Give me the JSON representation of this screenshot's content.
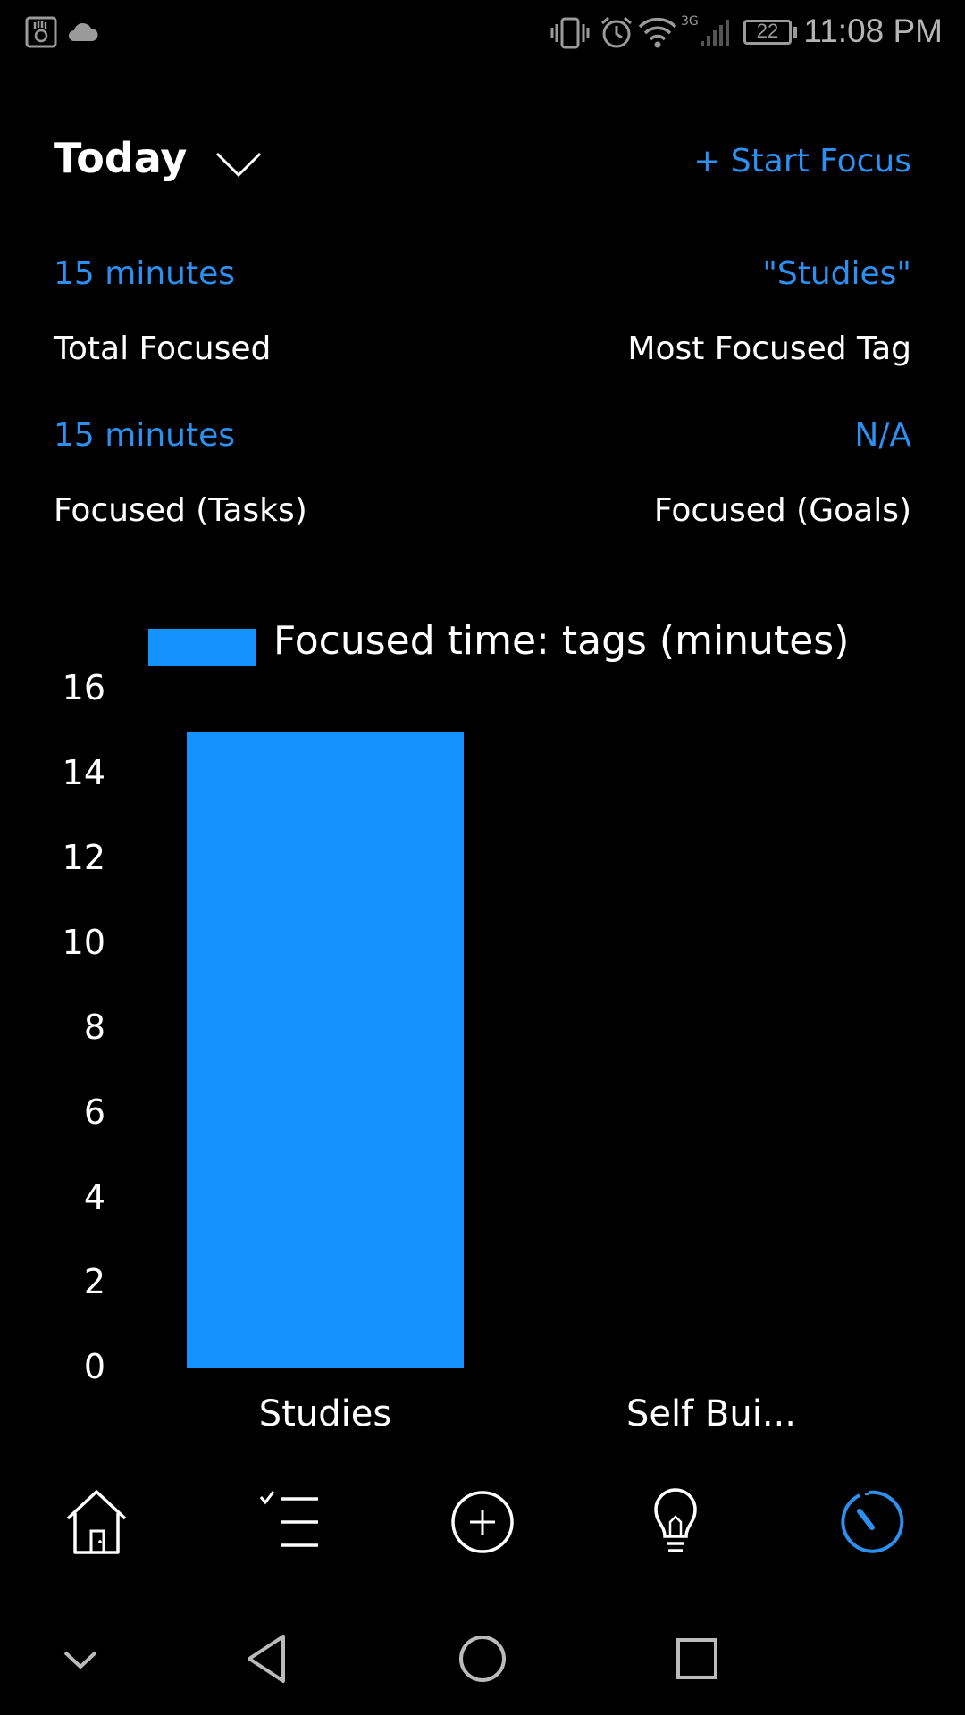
{
  "status_bar": {
    "time": "11:08 PM",
    "battery": "22",
    "network": "3G"
  },
  "header": {
    "title": "Today",
    "start_focus": "+ Start Focus"
  },
  "stats": [
    {
      "value": "15 minutes",
      "label": "Total Focused"
    },
    {
      "value": "\"Studies\"",
      "label": "Most Focused Tag"
    },
    {
      "value": "15 minutes",
      "label": "Focused (Tasks)"
    },
    {
      "value": "N/A",
      "label": "Focused (Goals)"
    }
  ],
  "colors": {
    "accent": "#2d8ff0",
    "bar": "#1493ff",
    "background": "#000000"
  },
  "chart_data": {
    "type": "bar",
    "legend": "Focused time: tags (minutes)",
    "categories": [
      "Studies",
      "Self Bui..."
    ],
    "values": [
      15,
      0
    ],
    "ylim": [
      0,
      16
    ],
    "yticks": [
      "0",
      "2",
      "4",
      "6",
      "8",
      "10",
      "12",
      "14",
      "16"
    ],
    "grid": false,
    "legend_position": "top"
  },
  "nav": {
    "items": [
      "home-icon",
      "task-list-icon",
      "add-circle-icon",
      "lightbulb-icon",
      "focus-timer-icon"
    ],
    "active": "focus-timer-icon"
  },
  "system_nav": [
    "collapse-icon",
    "back-icon",
    "home-circle-icon",
    "recents-icon"
  ]
}
